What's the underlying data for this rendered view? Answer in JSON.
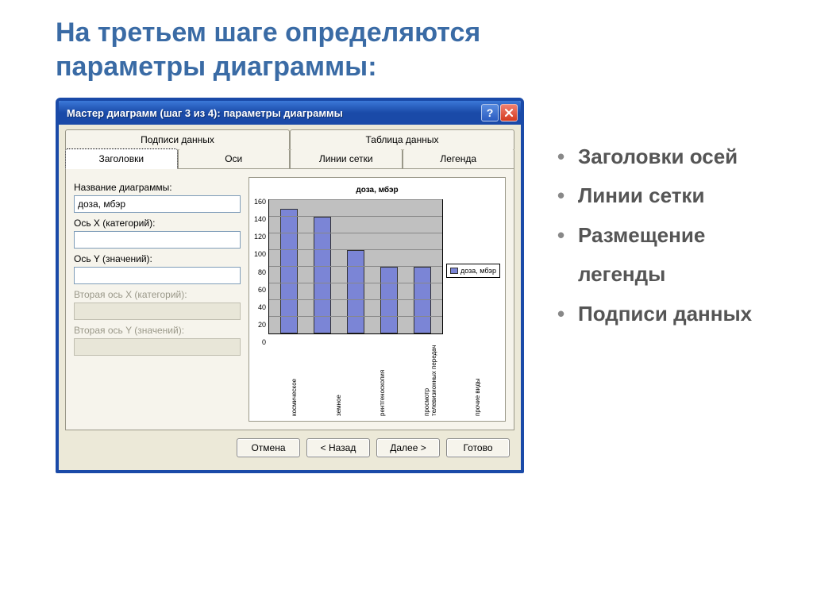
{
  "slide": {
    "title_line1": "На третьем шаге определяются",
    "title_line2": " параметры диаграммы:",
    "bullets": [
      "Заголовки осей",
      "Линии сетки",
      "Размещение легенды",
      "Подписи данных"
    ]
  },
  "dialog": {
    "title": "Мастер диаграмм (шаг 3 из 4): параметры диаграммы",
    "tabs_back": [
      "Подписи данных",
      "Таблица данных"
    ],
    "tabs_front": [
      "Заголовки",
      "Оси",
      "Линии сетки",
      "Легенда"
    ],
    "active_tab": "Заголовки",
    "fields": {
      "chart_title_label": "Название диаграммы:",
      "chart_title_value": "доза, мбэр",
      "x_axis_label": "Ось X (категорий):",
      "x_axis_value": "",
      "y_axis_label": "Ось Y (значений):",
      "y_axis_value": "",
      "x2_axis_label": "Вторая ось X (категорий):",
      "y2_axis_label": "Вторая ось Y (значений):"
    },
    "buttons": {
      "cancel": "Отмена",
      "back": "< Назад",
      "next": "Далее >",
      "finish": "Готово"
    }
  },
  "chart": {
    "type": "bar",
    "title": "доза, мбэр",
    "categories": [
      "космическое",
      "земное",
      "рентгеноскопия",
      "просмотр телевизионных передач",
      "прочие виды"
    ],
    "values": [
      150,
      140,
      100,
      80,
      80
    ],
    "ylim": [
      0,
      160
    ],
    "ytick_step": 20,
    "yticks": [
      0,
      20,
      40,
      60,
      80,
      100,
      120,
      140,
      160
    ],
    "bar_color": "#7b85d6",
    "bar_border": "#333333",
    "plot_bg": "#c0c0c0",
    "grid_color": "#888888",
    "legend_label": "доза, мбэр",
    "title_fontsize": 10,
    "tick_fontsize": 9
  },
  "colors": {
    "slide_title": "#3a6ba5",
    "titlebar_start": "#3b78d8",
    "titlebar_end": "#1a4aa8",
    "dialog_bg": "#ece9d8",
    "panel_bg": "#f6f4ec",
    "close_btn": "#d43a1f"
  }
}
